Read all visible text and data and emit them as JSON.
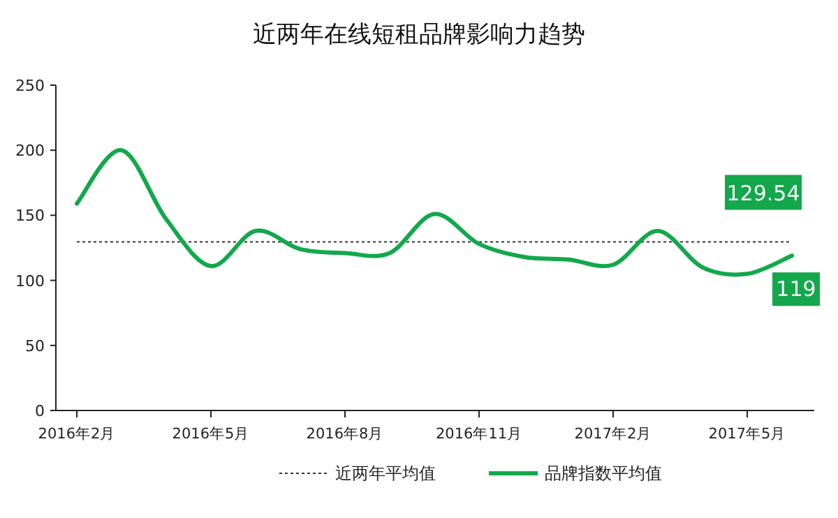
{
  "chart_data": {
    "type": "line",
    "title": "近两年在线短租品牌影响力趋势",
    "categories": [
      "2016年2月",
      null,
      null,
      "2016年5月",
      null,
      null,
      "2016年8月",
      null,
      null,
      "2016年11月",
      null,
      null,
      "2017年2月",
      null,
      null,
      "2017年5月",
      null
    ],
    "series": [
      {
        "name": "品牌指数平均值",
        "color": "#12a84b",
        "values": [
          159,
          200,
          147,
          111,
          138,
          124,
          121,
          121,
          151,
          128,
          118,
          116,
          112,
          138,
          110,
          105,
          119
        ],
        "value_labels": [
          null,
          null,
          null,
          null,
          null,
          null,
          null,
          null,
          null,
          null,
          null,
          null,
          null,
          null,
          null,
          null,
          "119"
        ]
      }
    ],
    "ref_lines": [
      {
        "axis": "y",
        "value": 129.54,
        "label": "近两年平均值",
        "color": "#333333",
        "line_style": "dotted"
      }
    ],
    "annotations": [
      {
        "text": "129.54",
        "y": 129.54
      }
    ],
    "ylim": [
      0,
      250
    ],
    "yticks": [
      0,
      50,
      100,
      150,
      200,
      250
    ],
    "legend": "bottom",
    "grid": false,
    "marker": "none",
    "line_style": "solid"
  }
}
